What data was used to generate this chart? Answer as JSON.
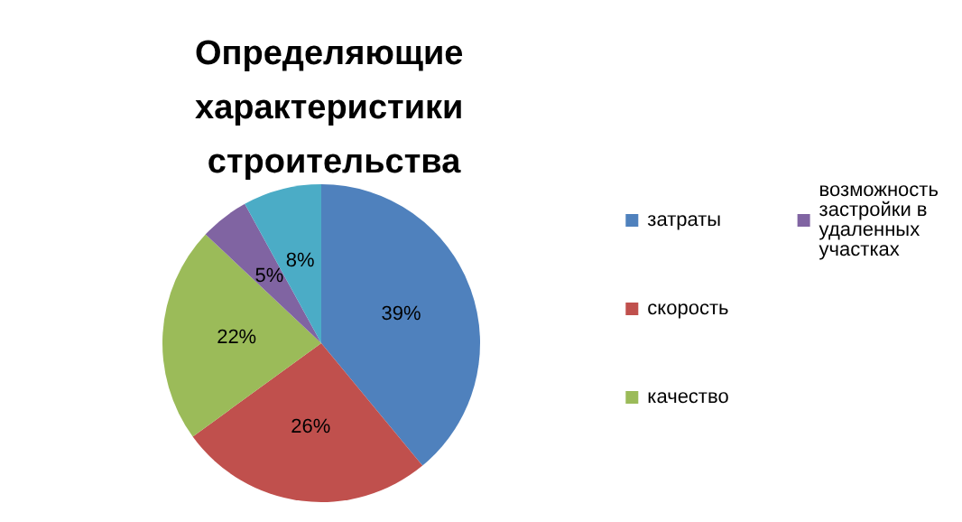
{
  "chart_data": {
    "type": "pie",
    "title": "Определяющие характеристики строительства",
    "categories": [
      "затраты",
      "скорость",
      "качество",
      "возможность застройки в удаленных участках",
      null
    ],
    "values": [
      39,
      26,
      22,
      5,
      8
    ],
    "colors": [
      "#4f81bd",
      "#c0504d",
      "#9bbb59",
      "#8064a2",
      "#4bacc6"
    ],
    "value_labels": [
      "39%",
      "26%",
      "22%",
      "5%",
      "8%"
    ],
    "legend": "right"
  }
}
